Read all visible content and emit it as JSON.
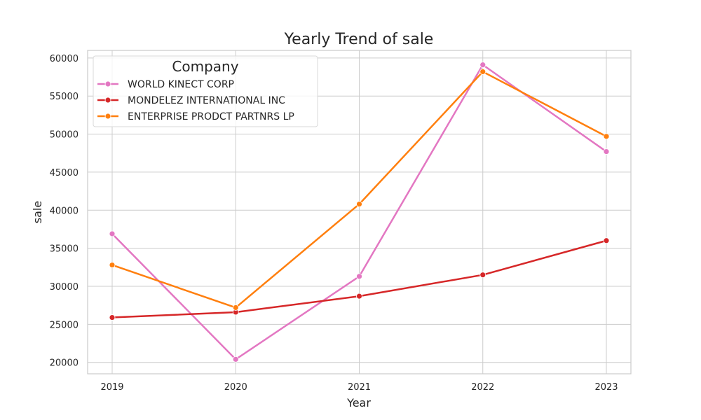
{
  "chart_data": {
    "type": "line",
    "title": "Yearly Trend of sale",
    "xlabel": "Year",
    "ylabel": "sale",
    "categories": [
      "2019",
      "2020",
      "2021",
      "2022",
      "2023"
    ],
    "ylim": [
      18500,
      61000
    ],
    "yticks": [
      20000,
      25000,
      30000,
      35000,
      40000,
      45000,
      50000,
      55000,
      60000
    ],
    "grid": true,
    "legend": {
      "title": "Company",
      "placement": "top-left"
    },
    "series": [
      {
        "name": "WORLD KINECT CORP",
        "color": "#e377c2",
        "values": [
          36900,
          20400,
          31300,
          59100,
          47700
        ]
      },
      {
        "name": "MONDELEZ INTERNATIONAL INC",
        "color": "#d62728",
        "values": [
          25900,
          26600,
          28700,
          31500,
          36000
        ]
      },
      {
        "name": "ENTERPRISE PRODCT PARTNRS LP",
        "color": "#ff7f0e",
        "values": [
          32800,
          27200,
          40800,
          58200,
          49700
        ]
      }
    ]
  }
}
